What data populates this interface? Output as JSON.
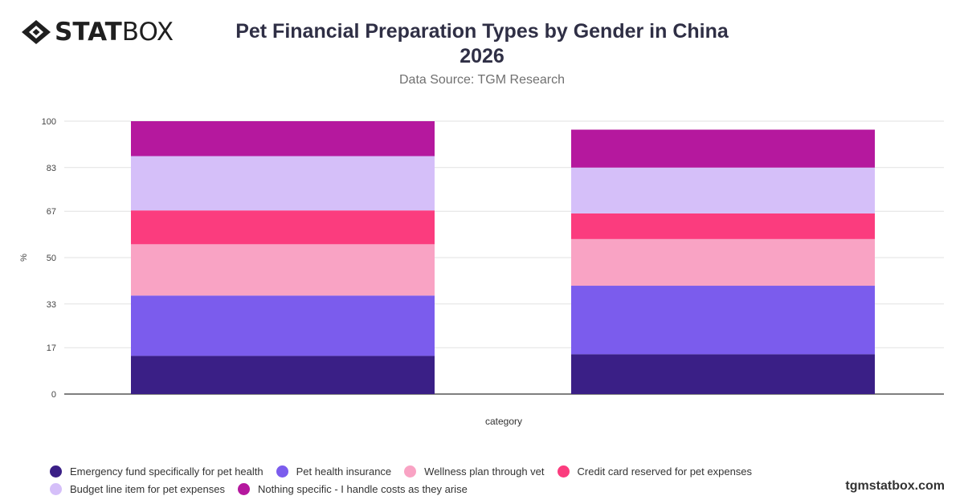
{
  "brand": {
    "logo_bold": "STAT",
    "logo_light": "BOX",
    "watermark": "tgmstatbox.com"
  },
  "header": {
    "title_line1": "Pet Financial Preparation Types by Gender in China",
    "title_line2": "2026",
    "subtitle": "Data Source: TGM Research"
  },
  "chart_data": {
    "type": "bar",
    "stacked": true,
    "xlabel": "category",
    "ylabel": "%",
    "ylim": [
      0,
      100
    ],
    "yticks": [
      "0",
      "17",
      "33",
      "50",
      "67",
      "83",
      "100"
    ],
    "grid": true,
    "legend_position": "bottom",
    "categories": [
      "",
      ""
    ],
    "series": [
      {
        "name": "Emergency fund specifically for pet health",
        "color": "#3a1f86",
        "values": [
          14,
          14.6
        ]
      },
      {
        "name": "Pet health insurance",
        "color": "#7b5ced",
        "values": [
          22.1,
          25.1
        ]
      },
      {
        "name": "Wellness plan through vet",
        "color": "#f9a3c4",
        "values": [
          18.8,
          17.1
        ]
      },
      {
        "name": "Credit card reserved for pet expenses",
        "color": "#fb3c7e",
        "values": [
          12.4,
          9.4
        ]
      },
      {
        "name": "Budget line item for pet expenses",
        "color": "#d5bff9",
        "values": [
          19.9,
          16.8
        ]
      },
      {
        "name": "Nothing specific - I handle costs as they arise",
        "color": "#b5189e",
        "values": [
          12.8,
          13.9
        ]
      }
    ]
  }
}
